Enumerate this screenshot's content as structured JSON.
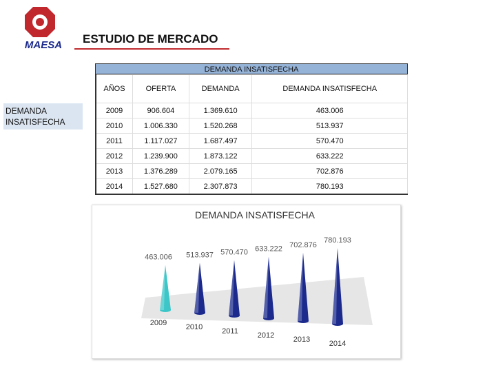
{
  "logo": {
    "text": "MAESA"
  },
  "header": {
    "title": "ESTUDIO DE MERCADO"
  },
  "sidebar": {
    "label": "DEMANDA INSATISFECHA"
  },
  "table": {
    "caption": "DEMANDA INSATISFECHA",
    "header": [
      "AÑOS",
      "OFERTA",
      "DEMANDA",
      "DEMANDA INSATISFECHA"
    ],
    "rows": [
      [
        "2009",
        "906.604",
        "1.369.610",
        "463.006"
      ],
      [
        "2010",
        "1.006.330",
        "1.520.268",
        "513.937"
      ],
      [
        "2011",
        "1.117.027",
        "1.687.497",
        "570.470"
      ],
      [
        "2012",
        "1.239.900",
        "1.873.122",
        "633.222"
      ],
      [
        "2013",
        "1.376.289",
        "2.079.165",
        "702.876"
      ],
      [
        "2014",
        "1.527.680",
        "2.307.873",
        "780.193"
      ]
    ]
  },
  "chart": {
    "type": "cone",
    "title": "DEMANDA INSATISFECHA",
    "categories": [
      "2009",
      "2010",
      "2011",
      "2012",
      "2013",
      "2014"
    ],
    "values": [
      463006,
      513937,
      570470,
      633222,
      702876,
      780193
    ],
    "value_labels": [
      "463.006",
      "513.937",
      "570.470",
      "633.222",
      "702.876",
      "780.193"
    ],
    "colors": [
      "#3cc6c8",
      "#1b2a8c",
      "#1b2a8c",
      "#1b2a8c",
      "#1b2a8c",
      "#1b2a8c"
    ]
  }
}
